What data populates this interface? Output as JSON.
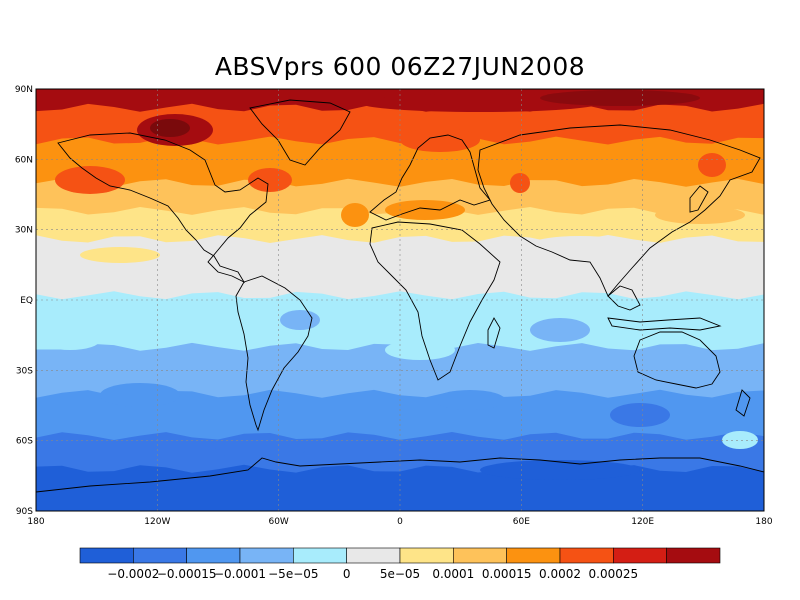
{
  "title": "ABSVprs 600 06Z27JUN2008",
  "lat_labels": [
    "90N",
    "60N",
    "30N",
    "EQ",
    "30S",
    "60S",
    "90S"
  ],
  "lon_labels": [
    "180",
    "120W",
    "60W",
    "0",
    "60E",
    "120E",
    "180"
  ],
  "colorbar": {
    "colors": [
      "#1f5fd8",
      "#3a78e6",
      "#5097f0",
      "#78b4f6",
      "#a8ecfc",
      "#e8e8e8",
      "#fee488",
      "#fec25a",
      "#fc9210",
      "#f55214",
      "#d41e14",
      "#a50c10"
    ],
    "labels": [
      "−0.0002",
      "−0.00015",
      "−0.0001",
      "−5e−05",
      "0",
      "5e−05",
      "0.0001",
      "0.00015",
      "0.0002",
      "0.00025"
    ]
  },
  "field_bands": [
    {
      "color": "#a50c10",
      "lat_top": 90,
      "lat_bottom": 82
    },
    {
      "color": "#f55214",
      "lat_top": 82,
      "lat_bottom": 68
    },
    {
      "color": "#fc9210",
      "lat_top": 68,
      "lat_bottom": 50
    },
    {
      "color": "#fec25a",
      "lat_top": 50,
      "lat_bottom": 38
    },
    {
      "color": "#fee488",
      "lat_top": 38,
      "lat_bottom": 26
    },
    {
      "color": "#e8e8e8",
      "lat_top": 26,
      "lat_bottom": 2
    },
    {
      "color": "#a8ecfc",
      "lat_top": 2,
      "lat_bottom": -20
    },
    {
      "color": "#78b4f6",
      "lat_top": -20,
      "lat_bottom": -40
    },
    {
      "color": "#5097f0",
      "lat_top": -40,
      "lat_bottom": -58
    },
    {
      "color": "#3a78e6",
      "lat_top": -58,
      "lat_bottom": -72
    },
    {
      "color": "#1f5fd8",
      "lat_top": -72,
      "lat_bottom": -90
    }
  ]
}
